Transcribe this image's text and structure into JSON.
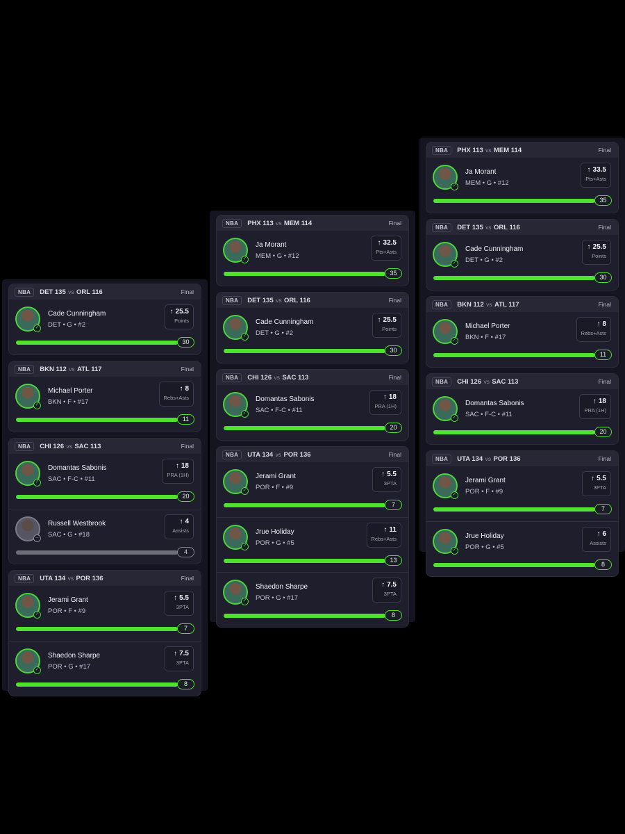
{
  "columns": [
    {
      "games": [
        {
          "league": "NBA",
          "team1": "DET",
          "score1": "135",
          "team2": "ORL",
          "score2": "116",
          "status": "Final",
          "players": [
            {
              "name": "Cade Cunningham",
              "info": "DET • G • #2",
              "line": "25.5",
              "stat": "Points",
              "result": "30",
              "progress": 1,
              "hit": true
            }
          ]
        },
        {
          "league": "NBA",
          "team1": "BKN",
          "score1": "112",
          "team2": "ATL",
          "score2": "117",
          "status": "Final",
          "players": [
            {
              "name": "Michael Porter",
              "info": "BKN • F • #17",
              "line": "8",
              "stat": "Rebs+Asts",
              "result": "11",
              "progress": 1,
              "hit": true
            }
          ]
        },
        {
          "league": "NBA",
          "team1": "CHI",
          "score1": "126",
          "team2": "SAC",
          "score2": "113",
          "status": "Final",
          "players": [
            {
              "name": "Domantas Sabonis",
              "info": "SAC • F-C • #11",
              "line": "18",
              "stat": "PRA (1H)",
              "result": "20",
              "progress": 1,
              "hit": true
            },
            {
              "name": "Russell Westbrook",
              "info": "SAC • G • #18",
              "line": "4",
              "stat": "Assists",
              "result": "4",
              "progress": 1,
              "hit": false
            }
          ]
        },
        {
          "league": "NBA",
          "team1": "UTA",
          "score1": "134",
          "team2": "POR",
          "score2": "136",
          "status": "Final",
          "players": [
            {
              "name": "Jerami Grant",
              "info": "POR • F • #9",
              "line": "5.5",
              "stat": "3PTA",
              "result": "7",
              "progress": 1,
              "hit": true
            },
            {
              "name": "Shaedon Sharpe",
              "info": "POR • G • #17",
              "line": "7.5",
              "stat": "3PTA",
              "result": "8",
              "progress": 1,
              "hit": true
            }
          ]
        }
      ]
    },
    {
      "games": [
        {
          "league": "NBA",
          "team1": "PHX",
          "score1": "113",
          "team2": "MEM",
          "score2": "114",
          "status": "Final",
          "players": [
            {
              "name": "Ja Morant",
              "info": "MEM • G • #12",
              "line": "32.5",
              "stat": "Pts+Asts",
              "result": "35",
              "progress": 1,
              "hit": true
            }
          ]
        },
        {
          "league": "NBA",
          "team1": "DET",
          "score1": "135",
          "team2": "ORL",
          "score2": "116",
          "status": "Final",
          "players": [
            {
              "name": "Cade Cunningham",
              "info": "DET • G • #2",
              "line": "25.5",
              "stat": "Points",
              "result": "30",
              "progress": 1,
              "hit": true
            }
          ]
        },
        {
          "league": "NBA",
          "team1": "CHI",
          "score1": "126",
          "team2": "SAC",
          "score2": "113",
          "status": "Final",
          "players": [
            {
              "name": "Domantas Sabonis",
              "info": "SAC • F-C • #11",
              "line": "18",
              "stat": "PRA (1H)",
              "result": "20",
              "progress": 1,
              "hit": true
            }
          ]
        },
        {
          "league": "NBA",
          "team1": "UTA",
          "score1": "134",
          "team2": "POR",
          "score2": "136",
          "status": "Final",
          "players": [
            {
              "name": "Jerami Grant",
              "info": "POR • F • #9",
              "line": "5.5",
              "stat": "3PTA",
              "result": "7",
              "progress": 1,
              "hit": true
            },
            {
              "name": "Jrue Holiday",
              "info": "POR • G • #5",
              "line": "11",
              "stat": "Rebs+Asts",
              "result": "13",
              "progress": 1,
              "hit": true
            },
            {
              "name": "Shaedon Sharpe",
              "info": "POR • G • #17",
              "line": "7.5",
              "stat": "3PTA",
              "result": "8",
              "progress": 1,
              "hit": true
            }
          ]
        }
      ]
    },
    {
      "games": [
        {
          "league": "NBA",
          "team1": "PHX",
          "score1": "113",
          "team2": "MEM",
          "score2": "114",
          "status": "Final",
          "players": [
            {
              "name": "Ja Morant",
              "info": "MEM • G • #12",
              "line": "33.5",
              "stat": "Pts+Asts",
              "result": "35",
              "progress": 1,
              "hit": true
            }
          ]
        },
        {
          "league": "NBA",
          "team1": "DET",
          "score1": "135",
          "team2": "ORL",
          "score2": "116",
          "status": "Final",
          "players": [
            {
              "name": "Cade Cunningham",
              "info": "DET • G • #2",
              "line": "25.5",
              "stat": "Points",
              "result": "30",
              "progress": 1,
              "hit": true
            }
          ]
        },
        {
          "league": "NBA",
          "team1": "BKN",
          "score1": "112",
          "team2": "ATL",
          "score2": "117",
          "status": "Final",
          "players": [
            {
              "name": "Michael Porter",
              "info": "BKN • F • #17",
              "line": "8",
              "stat": "Rebs+Asts",
              "result": "11",
              "progress": 1,
              "hit": true
            }
          ]
        },
        {
          "league": "NBA",
          "team1": "CHI",
          "score1": "126",
          "team2": "SAC",
          "score2": "113",
          "status": "Final",
          "players": [
            {
              "name": "Domantas Sabonis",
              "info": "SAC • F-C • #11",
              "line": "18",
              "stat": "PRA (1H)",
              "result": "20",
              "progress": 1,
              "hit": true
            }
          ]
        },
        {
          "league": "NBA",
          "team1": "UTA",
          "score1": "134",
          "team2": "POR",
          "score2": "136",
          "status": "Final",
          "players": [
            {
              "name": "Jerami Grant",
              "info": "POR • F • #9",
              "line": "5.5",
              "stat": "3PTA",
              "result": "7",
              "progress": 1,
              "hit": true
            },
            {
              "name": "Jrue Holiday",
              "info": "POR • G • #5",
              "line": "6",
              "stat": "Assists",
              "result": "8",
              "progress": 1,
              "hit": true
            }
          ]
        }
      ]
    }
  ],
  "icons": {
    "over": "arrow-up-icon",
    "hit": "check-icon",
    "push": "minus-icon"
  },
  "colors": {
    "hit": "#4fe22e",
    "push": "#6f6f7c",
    "card": "#1e1e2c",
    "header": "#272736"
  }
}
